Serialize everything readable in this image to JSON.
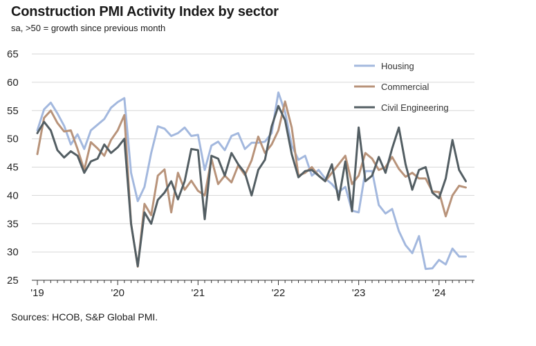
{
  "header": {
    "title": "Construction PMI Activity Index by sector",
    "subtitle": "sa, >50 = growth since previous month"
  },
  "footer": {
    "source": "Sources: HCOB, S&P Global PMI."
  },
  "colors": {
    "housing": "#A3B8DE",
    "commercial": "#B8937A",
    "civil": "#535E63",
    "grid": "#D6D6D6",
    "axis": "#333333"
  },
  "chart_data": {
    "type": "line",
    "title": "Construction PMI Activity Index by sector",
    "subtitle": "sa, >50 = growth since previous month",
    "x_ticks": [
      "'19",
      "'20",
      "'21",
      "'22",
      "'23",
      "'24"
    ],
    "y_ticks": [
      "25",
      "30",
      "35",
      "40",
      "45",
      "50",
      "55",
      "60",
      "65"
    ],
    "ylim": [
      25,
      65
    ],
    "x_start": "2019-01",
    "grid": true,
    "legend_position": "top-right",
    "series": [
      {
        "name": "Housing",
        "color": "#A3B8DE",
        "values": [
          51.5,
          55.2,
          56.4,
          54.5,
          52.3,
          49.0,
          50.8,
          48.2,
          51.5,
          52.5,
          53.5,
          55.5,
          56.5,
          57.2,
          44.0,
          39.0,
          41.5,
          47.5,
          52.2,
          51.8,
          50.5,
          51.0,
          52.0,
          50.5,
          50.7,
          44.5,
          48.8,
          49.5,
          48.0,
          50.5,
          51.0,
          48.2,
          49.3,
          49.3,
          49.5,
          51.0,
          58.2,
          54.7,
          48.8,
          46.3,
          47.0,
          43.5,
          44.5,
          43.0,
          42.0,
          40.6,
          41.5,
          37.3,
          37.0,
          44.3,
          44.3,
          38.3,
          36.8,
          37.6,
          33.7,
          31.2,
          29.8,
          32.8,
          27.0,
          27.1,
          28.6,
          27.8,
          30.6,
          29.2,
          29.2
        ]
      },
      {
        "name": "Commercial",
        "color": "#B8937A",
        "values": [
          47.3,
          53.7,
          55.0,
          52.8,
          51.3,
          51.5,
          48.2,
          44.5,
          49.4,
          48.3,
          47.0,
          49.8,
          51.5,
          54.2,
          35.0,
          27.4,
          38.5,
          36.5,
          43.5,
          44.6,
          37.0,
          44.0,
          41.0,
          42.6,
          40.8,
          40.0,
          46.5,
          42.0,
          43.5,
          42.3,
          45.3,
          43.6,
          46.2,
          50.4,
          47.5,
          49.0,
          51.5,
          56.6,
          52.0,
          43.5,
          44.0,
          45.0,
          43.5,
          42.5,
          44.0,
          45.5,
          47.0,
          42.0,
          43.5,
          47.5,
          46.5,
          44.5,
          45.0,
          46.8,
          44.7,
          43.3,
          44.0,
          43.0,
          43.0,
          40.7,
          40.6,
          36.3,
          40.0,
          41.7,
          41.4
        ]
      },
      {
        "name": "Civil Engineering",
        "color": "#535E63",
        "values": [
          51.0,
          53.0,
          51.5,
          48.0,
          46.7,
          47.8,
          47.0,
          44.0,
          46.0,
          46.5,
          49.0,
          47.5,
          48.5,
          50.0,
          35.0,
          27.5,
          37.0,
          35.0,
          39.2,
          40.5,
          42.5,
          39.3,
          42.5,
          48.2,
          48.0,
          35.8,
          47.0,
          46.5,
          43.5,
          47.5,
          45.5,
          44.0,
          40.0,
          44.5,
          46.3,
          52.2,
          55.8,
          53.3,
          47.3,
          43.2,
          44.3,
          44.5,
          43.5,
          42.5,
          45.5,
          39.2,
          46.0,
          37.2,
          52.0,
          42.5,
          43.5,
          46.8,
          44.0,
          48.3,
          52.0,
          45.5,
          41.0,
          44.5,
          45.0,
          40.5,
          39.5,
          43.0,
          49.8,
          44.5,
          42.5
        ]
      }
    ]
  }
}
